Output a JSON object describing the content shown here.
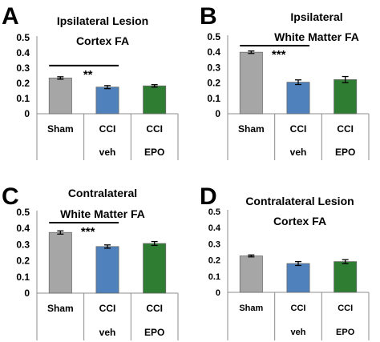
{
  "chart_data": [
    {
      "type": "bar",
      "panel_label": "A",
      "title_lines": [
        "Ipsilateral Lesion",
        "Cortex FA"
      ],
      "categories": [
        [
          "Sham"
        ],
        [
          "CCI",
          "veh"
        ],
        [
          "CCI",
          "EPO"
        ]
      ],
      "values": [
        0.235,
        0.175,
        0.183
      ],
      "errors": [
        0.008,
        0.01,
        0.008
      ],
      "colors": [
        "#a6a6a6",
        "#4f81bd",
        "#2e7d32"
      ],
      "ylim": [
        0,
        0.5
      ],
      "yticks": [
        "0",
        "0.1",
        "0.2",
        "0.3",
        "0.4",
        "0.5"
      ],
      "significance": {
        "from": 0,
        "to": 1,
        "label": "**"
      }
    },
    {
      "type": "bar",
      "panel_label": "B",
      "title_lines": [
        "Ipsilateral",
        "White Matter FA"
      ],
      "categories": [
        [
          "Sham"
        ],
        [
          "CCI",
          "veh"
        ],
        [
          "CCI",
          "EPO"
        ]
      ],
      "values": [
        0.4,
        0.205,
        0.222
      ],
      "errors": [
        0.008,
        0.015,
        0.02
      ],
      "colors": [
        "#a6a6a6",
        "#4f81bd",
        "#2e7d32"
      ],
      "ylim": [
        0,
        0.5
      ],
      "yticks": [
        "0",
        "0.1",
        "0.2",
        "0.3",
        "0.4",
        "0.5"
      ],
      "significance": {
        "from": 0,
        "to": 1,
        "label": "***"
      }
    },
    {
      "type": "bar",
      "panel_label": "C",
      "title_lines": [
        "Contralateral",
        "White Matter FA"
      ],
      "categories": [
        [
          "Sham"
        ],
        [
          "CCI",
          "veh"
        ],
        [
          "CCI",
          "EPO"
        ]
      ],
      "values": [
        0.375,
        0.288,
        0.307
      ],
      "errors": [
        0.01,
        0.01,
        0.012
      ],
      "colors": [
        "#a6a6a6",
        "#4f81bd",
        "#2e7d32"
      ],
      "ylim": [
        0,
        0.5
      ],
      "yticks": [
        "0",
        "0.1",
        "0.2",
        "0.3",
        "0.4",
        "0.5"
      ],
      "significance": {
        "from": 0,
        "to": 1,
        "label": "***"
      }
    },
    {
      "type": "bar",
      "panel_label": "D",
      "title_lines": [
        "Contralateral Lesion",
        "Cortex FA"
      ],
      "categories": [
        [
          "Sham"
        ],
        [
          "CCI",
          "veh"
        ],
        [
          "CCI",
          "EPO"
        ]
      ],
      "values": [
        0.225,
        0.178,
        0.19
      ],
      "errors": [
        0.006,
        0.012,
        0.012
      ],
      "colors": [
        "#a6a6a6",
        "#4f81bd",
        "#2e7d32"
      ],
      "ylim": [
        0,
        0.5
      ],
      "yticks": [
        "0",
        "0.1",
        "0.2",
        "0.3",
        "0.4",
        "0.5"
      ]
    }
  ]
}
